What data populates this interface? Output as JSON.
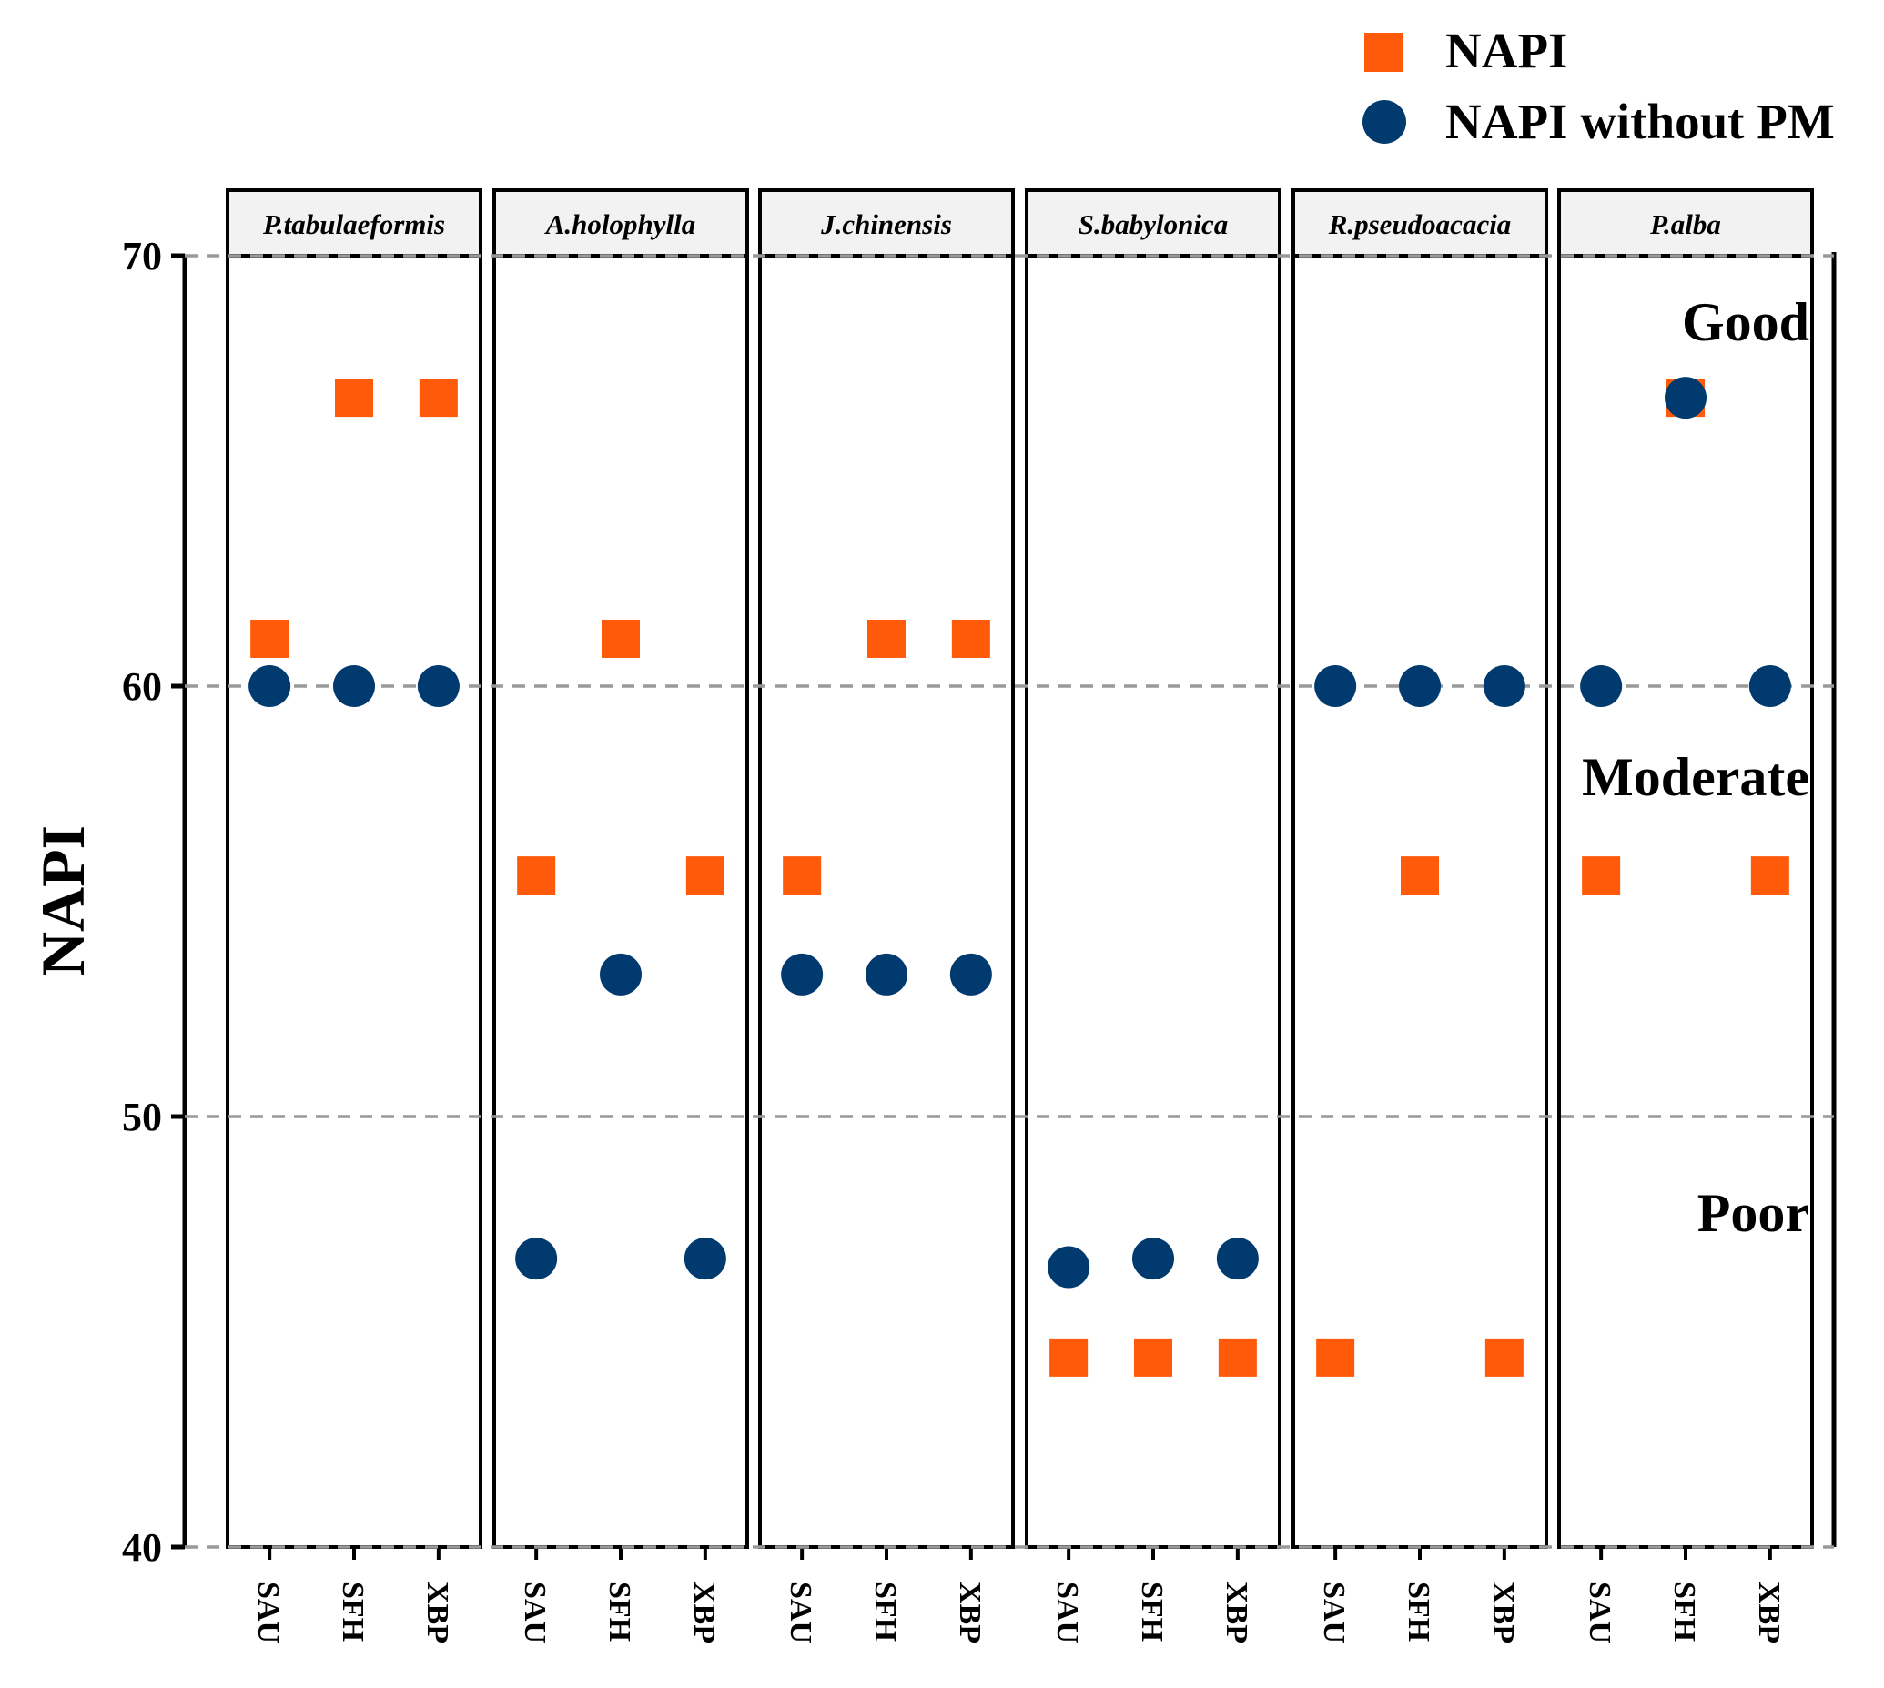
{
  "chart_data": {
    "type": "scatter",
    "ylabel": "NAPI",
    "xlabel": "",
    "ylim": [
      40,
      70
    ],
    "yticks": [
      40,
      50,
      60,
      70
    ],
    "reference_lines": [
      40,
      50,
      60,
      70
    ],
    "zones": [
      "Good",
      "Moderate",
      "Poor"
    ],
    "categories": [
      "SAU",
      "SFH",
      "XBP"
    ],
    "legend": {
      "position": "top-right",
      "entries": [
        {
          "label": "NAPI",
          "marker": "square",
          "color": "#FF5A0A"
        },
        {
          "label": "NAPI without PM",
          "marker": "circle",
          "color": "#003A6E"
        }
      ]
    },
    "panels": [
      {
        "name": "P.tabulaeformis",
        "napi": [
          61.1,
          66.7,
          66.7
        ],
        "napi_without_pm": [
          60.0,
          60.0,
          60.0
        ]
      },
      {
        "name": "A.holophylla",
        "napi": [
          55.6,
          61.1,
          55.6
        ],
        "napi_without_pm": [
          46.7,
          53.3,
          46.7
        ]
      },
      {
        "name": "J.chinensis",
        "napi": [
          55.6,
          61.1,
          61.1
        ],
        "napi_without_pm": [
          53.3,
          53.3,
          53.3
        ]
      },
      {
        "name": "S.babylonica",
        "napi": [
          44.4,
          44.4,
          44.4
        ],
        "napi_without_pm": [
          46.5,
          46.7,
          46.7
        ]
      },
      {
        "name": "R.pseudoacacia",
        "napi": [
          44.4,
          55.6,
          44.4
        ],
        "napi_without_pm": [
          60.0,
          60.0,
          60.0
        ]
      },
      {
        "name": "P.alba",
        "napi": [
          55.6,
          66.7,
          55.6
        ],
        "napi_without_pm": [
          60.0,
          66.7,
          60.0
        ]
      }
    ]
  }
}
